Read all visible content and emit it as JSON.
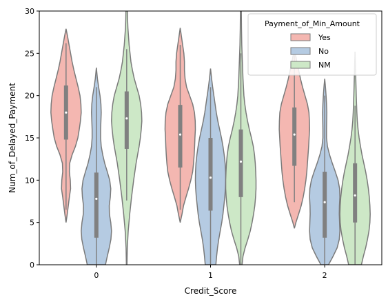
{
  "chart_data": {
    "type": "violin",
    "xlabel": "Credit_Score",
    "ylabel": "Num_of_Delayed_Payment",
    "categories": [
      "0",
      "1",
      "2"
    ],
    "ylim": [
      0,
      30
    ],
    "yticks": [
      "0",
      "5",
      "10",
      "15",
      "20",
      "25",
      "30"
    ],
    "legend": {
      "title": "Payment_of_Min_Amount",
      "placement": "top-right",
      "entries": [
        "Yes",
        "No",
        "NM"
      ]
    },
    "colors": {
      "Yes": "#f4b7b1",
      "No": "#b5cbe2",
      "NM": "#cde8c7",
      "outline": "#7a7a7a",
      "box": "#808080"
    },
    "series": [
      {
        "name": "Yes",
        "violins": [
          {
            "min": 5.0,
            "max": 27.9,
            "q1": 14.8,
            "median": 18.0,
            "q3": 21.2,
            "whisker_low": 6.5,
            "whisker_high": 26.2,
            "profile": [
              [
                5.0,
                0.0
              ],
              [
                6.0,
                0.08
              ],
              [
                7.0,
                0.15
              ],
              [
                8.0,
                0.22
              ],
              [
                9.0,
                0.3
              ],
              [
                10.0,
                0.28
              ],
              [
                11.0,
                0.22
              ],
              [
                12.0,
                0.24
              ],
              [
                13.0,
                0.4
              ],
              [
                14.0,
                0.62
              ],
              [
                15.0,
                0.78
              ],
              [
                16.0,
                0.87
              ],
              [
                17.0,
                0.95
              ],
              [
                18.0,
                1.0
              ],
              [
                19.0,
                0.98
              ],
              [
                20.0,
                0.92
              ],
              [
                21.0,
                0.8
              ],
              [
                22.0,
                0.66
              ],
              [
                23.0,
                0.52
              ],
              [
                24.0,
                0.4
              ],
              [
                25.0,
                0.3
              ],
              [
                26.0,
                0.2
              ],
              [
                27.0,
                0.1
              ],
              [
                27.9,
                0.0
              ]
            ]
          },
          {
            "min": 5.0,
            "max": 28.0,
            "q1": 11.5,
            "median": 15.4,
            "q3": 18.9,
            "whisker_low": 6.5,
            "whisker_high": 26.0,
            "profile": [
              [
                5.0,
                0.0
              ],
              [
                6.0,
                0.12
              ],
              [
                7.0,
                0.22
              ],
              [
                8.0,
                0.38
              ],
              [
                9.0,
                0.55
              ],
              [
                10.0,
                0.7
              ],
              [
                11.0,
                0.82
              ],
              [
                12.0,
                0.88
              ],
              [
                13.0,
                0.92
              ],
              [
                14.0,
                0.95
              ],
              [
                15.0,
                0.97
              ],
              [
                16.0,
                1.0
              ],
              [
                17.0,
                0.99
              ],
              [
                18.0,
                0.94
              ],
              [
                19.0,
                0.82
              ],
              [
                20.0,
                0.62
              ],
              [
                21.0,
                0.42
              ],
              [
                22.0,
                0.32
              ],
              [
                23.0,
                0.28
              ],
              [
                24.0,
                0.28
              ],
              [
                25.0,
                0.24
              ],
              [
                26.0,
                0.16
              ],
              [
                27.0,
                0.08
              ],
              [
                28.0,
                0.0
              ]
            ]
          },
          {
            "min": 4.3,
            "max": 25.7,
            "q1": 11.7,
            "median": 15.4,
            "q3": 18.6,
            "whisker_low": 7.4,
            "whisker_high": 25.7,
            "profile": [
              [
                4.3,
                0.0
              ],
              [
                5.0,
                0.1
              ],
              [
                6.0,
                0.28
              ],
              [
                7.0,
                0.45
              ],
              [
                8.0,
                0.58
              ],
              [
                9.0,
                0.68
              ],
              [
                10.0,
                0.76
              ],
              [
                11.0,
                0.82
              ],
              [
                12.0,
                0.86
              ],
              [
                13.0,
                0.9
              ],
              [
                14.0,
                0.94
              ],
              [
                15.0,
                0.97
              ],
              [
                16.0,
                1.0
              ],
              [
                17.0,
                0.99
              ],
              [
                18.0,
                0.96
              ],
              [
                19.0,
                0.86
              ],
              [
                20.0,
                0.7
              ],
              [
                21.0,
                0.54
              ],
              [
                22.0,
                0.4
              ],
              [
                23.0,
                0.28
              ],
              [
                24.0,
                0.16
              ],
              [
                25.0,
                0.06
              ],
              [
                25.7,
                0.0
              ]
            ]
          }
        ]
      },
      {
        "name": "No",
        "violins": [
          {
            "min": 0.0,
            "max": 23.3,
            "q1": 3.2,
            "median": 7.8,
            "q3": 10.9,
            "whisker_low": 0.0,
            "whisker_high": 21.0,
            "profile": [
              [
                0.0,
                0.6
              ],
              [
                1.0,
                0.72
              ],
              [
                2.0,
                0.85
              ],
              [
                3.0,
                0.96
              ],
              [
                4.0,
                1.0
              ],
              [
                5.0,
                0.95
              ],
              [
                6.0,
                0.86
              ],
              [
                7.0,
                0.85
              ],
              [
                8.0,
                0.92
              ],
              [
                9.0,
                0.95
              ],
              [
                10.0,
                0.88
              ],
              [
                11.0,
                0.72
              ],
              [
                12.0,
                0.55
              ],
              [
                13.0,
                0.42
              ],
              [
                14.0,
                0.32
              ],
              [
                15.0,
                0.28
              ],
              [
                16.0,
                0.28
              ],
              [
                17.0,
                0.3
              ],
              [
                18.0,
                0.32
              ],
              [
                19.0,
                0.3
              ],
              [
                20.0,
                0.24
              ],
              [
                21.0,
                0.15
              ],
              [
                22.0,
                0.07
              ],
              [
                23.3,
                0.0
              ]
            ]
          },
          {
            "min": 0.0,
            "max": 23.2,
            "q1": 6.4,
            "median": 10.3,
            "q3": 15.0,
            "whisker_low": 0.0,
            "whisker_high": 21.0,
            "profile": [
              [
                0.0,
                0.35
              ],
              [
                1.0,
                0.4
              ],
              [
                2.0,
                0.46
              ],
              [
                3.0,
                0.54
              ],
              [
                4.0,
                0.64
              ],
              [
                5.0,
                0.74
              ],
              [
                6.0,
                0.82
              ],
              [
                7.0,
                0.88
              ],
              [
                8.0,
                0.94
              ],
              [
                9.0,
                0.98
              ],
              [
                10.0,
                1.0
              ],
              [
                11.0,
                0.99
              ],
              [
                12.0,
                0.96
              ],
              [
                13.0,
                0.9
              ],
              [
                14.0,
                0.82
              ],
              [
                15.0,
                0.72
              ],
              [
                16.0,
                0.6
              ],
              [
                17.0,
                0.48
              ],
              [
                18.0,
                0.38
              ],
              [
                19.0,
                0.3
              ],
              [
                20.0,
                0.22
              ],
              [
                21.0,
                0.14
              ],
              [
                22.0,
                0.07
              ],
              [
                23.2,
                0.0
              ]
            ]
          },
          {
            "min": 0.0,
            "max": 22.0,
            "q1": 3.2,
            "median": 7.4,
            "q3": 11.0,
            "whisker_low": 0.0,
            "whisker_high": 20.0,
            "profile": [
              [
                0.0,
                0.25
              ],
              [
                1.0,
                0.55
              ],
              [
                2.0,
                0.82
              ],
              [
                3.0,
                0.96
              ],
              [
                4.0,
                1.0
              ],
              [
                5.0,
                0.98
              ],
              [
                6.0,
                0.96
              ],
              [
                7.0,
                0.97
              ],
              [
                8.0,
                1.0
              ],
              [
                9.0,
                0.98
              ],
              [
                10.0,
                0.88
              ],
              [
                11.0,
                0.7
              ],
              [
                12.0,
                0.5
              ],
              [
                13.0,
                0.32
              ],
              [
                14.0,
                0.18
              ],
              [
                15.0,
                0.12
              ],
              [
                16.0,
                0.12
              ],
              [
                17.0,
                0.13
              ],
              [
                18.0,
                0.14
              ],
              [
                19.0,
                0.12
              ],
              [
                20.0,
                0.09
              ],
              [
                21.0,
                0.05
              ],
              [
                22.0,
                0.0
              ]
            ]
          }
        ]
      },
      {
        "name": "NM",
        "violins": [
          {
            "min": 0.0,
            "max": 30.0,
            "q1": 13.7,
            "median": 17.3,
            "q3": 20.5,
            "whisker_low": 7.6,
            "whisker_high": 25.5,
            "profile": [
              [
                0.0,
                0.02
              ],
              [
                2.0,
                0.04
              ],
              [
                4.0,
                0.1
              ],
              [
                6.0,
                0.2
              ],
              [
                8.0,
                0.32
              ],
              [
                10.0,
                0.46
              ],
              [
                12.0,
                0.62
              ],
              [
                13.0,
                0.72
              ],
              [
                14.0,
                0.82
              ],
              [
                15.0,
                0.9
              ],
              [
                16.0,
                0.96
              ],
              [
                17.0,
                1.0
              ],
              [
                18.0,
                0.98
              ],
              [
                19.0,
                0.92
              ],
              [
                20.0,
                0.82
              ],
              [
                21.0,
                0.66
              ],
              [
                22.0,
                0.5
              ],
              [
                23.0,
                0.38
              ],
              [
                24.0,
                0.28
              ],
              [
                25.0,
                0.22
              ],
              [
                26.0,
                0.16
              ],
              [
                27.0,
                0.12
              ],
              [
                28.0,
                0.08
              ],
              [
                29.0,
                0.06
              ],
              [
                30.0,
                0.05
              ]
            ]
          },
          {
            "min": 0.0,
            "max": 30.0,
            "q1": 8.0,
            "median": 12.2,
            "q3": 16.0,
            "whisker_low": 0.0,
            "whisker_high": 25.0,
            "profile": [
              [
                0.0,
                0.08
              ],
              [
                1.0,
                0.14
              ],
              [
                2.0,
                0.28
              ],
              [
                3.0,
                0.46
              ],
              [
                4.0,
                0.62
              ],
              [
                5.0,
                0.74
              ],
              [
                6.0,
                0.84
              ],
              [
                7.0,
                0.92
              ],
              [
                8.0,
                0.97
              ],
              [
                9.0,
                1.0
              ],
              [
                10.0,
                1.0
              ],
              [
                11.0,
                0.98
              ],
              [
                12.0,
                0.95
              ],
              [
                13.0,
                0.9
              ],
              [
                14.0,
                0.82
              ],
              [
                15.0,
                0.7
              ],
              [
                16.0,
                0.56
              ],
              [
                17.0,
                0.44
              ],
              [
                18.0,
                0.34
              ],
              [
                19.0,
                0.26
              ],
              [
                20.0,
                0.2
              ],
              [
                22.0,
                0.14
              ],
              [
                24.0,
                0.1
              ],
              [
                26.0,
                0.06
              ],
              [
                28.0,
                0.04
              ],
              [
                30.0,
                0.03
              ]
            ]
          },
          {
            "min": 0.0,
            "max": 25.2,
            "q1": 5.0,
            "median": 8.2,
            "q3": 12.0,
            "whisker_low": 0.0,
            "whisker_high": 18.8,
            "profile": [
              [
                0.0,
                0.42
              ],
              [
                1.0,
                0.55
              ],
              [
                2.0,
                0.7
              ],
              [
                3.0,
                0.82
              ],
              [
                4.0,
                0.92
              ],
              [
                5.0,
                0.98
              ],
              [
                6.0,
                1.0
              ],
              [
                7.0,
                0.98
              ],
              [
                8.0,
                0.94
              ],
              [
                9.0,
                0.88
              ],
              [
                10.0,
                0.8
              ],
              [
                11.0,
                0.7
              ],
              [
                12.0,
                0.58
              ],
              [
                13.0,
                0.46
              ],
              [
                14.0,
                0.36
              ],
              [
                15.0,
                0.27
              ],
              [
                16.0,
                0.2
              ],
              [
                17.0,
                0.15
              ],
              [
                18.0,
                0.12
              ],
              [
                19.0,
                0.1
              ],
              [
                20.0,
                0.08
              ],
              [
                22.0,
                0.05
              ],
              [
                24.0,
                0.02
              ],
              [
                25.2,
                0.0
              ]
            ]
          }
        ]
      }
    ]
  }
}
